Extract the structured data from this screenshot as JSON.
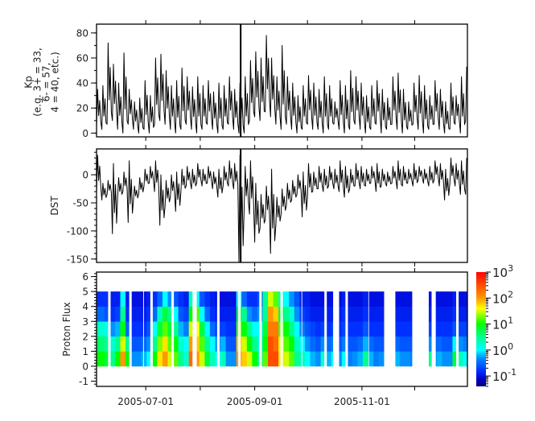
{
  "time_axis": {
    "range": [
      "2005-06-03",
      "2005-12-31"
    ],
    "major_ticks": [
      "2005-07-01",
      "2005-09-01",
      "2005-11-01"
    ],
    "minor_ticks": [
      "2005-08-01",
      "2005-10-01",
      "2005-12-01"
    ]
  },
  "marker_date": "2005-08-24",
  "chart_data": [
    {
      "type": "line",
      "ylabel_lines": [
        "Kp",
        "(e.g. 3+ = 33,",
        "6- = 57,",
        "4 = 40, etc.)"
      ],
      "ylim": [
        -3,
        87
      ],
      "yticks": [
        0,
        20,
        40,
        60,
        80
      ],
      "minor_step": 10,
      "x_start": "2005-06-03",
      "x_step_days": 3,
      "series": [
        {
          "stat": "min",
          "values": [
            5,
            3,
            7,
            10,
            3,
            0,
            7,
            3,
            0,
            3,
            0,
            7,
            10,
            7,
            3,
            0,
            3,
            7,
            3,
            0,
            3,
            7,
            3,
            0,
            3,
            7,
            3,
            0,
            0,
            10,
            13,
            10,
            17,
            13,
            7,
            3,
            7,
            3,
            0,
            3,
            7,
            3,
            3,
            0,
            3,
            7,
            3,
            0,
            3,
            7,
            3,
            0,
            3,
            7,
            0,
            3,
            7,
            3,
            0,
            3,
            7,
            3,
            0,
            3,
            7,
            3,
            0,
            3,
            7,
            0,
            10
          ]
        },
        {
          "stat": "max",
          "values": [
            35,
            38,
            72,
            55,
            40,
            64,
            35,
            25,
            28,
            42,
            30,
            60,
            63,
            50,
            38,
            42,
            52,
            45,
            37,
            45,
            38,
            42,
            33,
            40,
            38,
            45,
            35,
            40,
            45,
            58,
            65,
            60,
            78,
            60,
            45,
            70,
            45,
            40,
            30,
            38,
            46,
            40,
            35,
            45,
            38,
            25,
            42,
            38,
            50,
            45,
            40,
            30,
            38,
            42,
            35,
            28,
            45,
            48,
            35,
            25,
            40,
            46,
            38,
            30,
            42,
            35,
            25,
            40,
            30,
            45,
            53
          ]
        }
      ]
    },
    {
      "type": "line",
      "ylabel": "DST",
      "ylim": [
        -156,
        46
      ],
      "yticks": [
        0,
        -50,
        -100,
        -150
      ],
      "minor_step": 10,
      "x_start": "2005-06-03",
      "x_step_days": 3,
      "series": [
        {
          "stat": "min",
          "values": [
            -30,
            -45,
            -35,
            -105,
            -40,
            -30,
            -85,
            -45,
            -35,
            -20,
            -15,
            -30,
            -90,
            -55,
            -40,
            -65,
            -30,
            -20,
            -25,
            -15,
            -20,
            -15,
            -25,
            -40,
            -20,
            -20,
            -25,
            -155,
            -60,
            -70,
            -120,
            -95,
            -80,
            -140,
            -90,
            -70,
            -55,
            -45,
            -35,
            -75,
            -40,
            -30,
            -25,
            -30,
            -20,
            -25,
            -30,
            -40,
            -25,
            -20,
            -25,
            -20,
            -15,
            -30,
            -20,
            -20,
            -15,
            -25,
            -20,
            -15,
            -20,
            -10,
            -15,
            -20,
            -10,
            -20,
            -45,
            -15,
            -20,
            -35,
            -35
          ]
        },
        {
          "stat": "max",
          "values": [
            35,
            -15,
            -10,
            20,
            -5,
            5,
            25,
            -20,
            -5,
            10,
            15,
            25,
            0,
            -10,
            0,
            5,
            10,
            15,
            10,
            20,
            10,
            15,
            5,
            10,
            15,
            25,
            20,
            35,
            15,
            25,
            -15,
            -35,
            -20,
            10,
            -40,
            -25,
            -15,
            -10,
            0,
            5,
            20,
            5,
            15,
            10,
            15,
            10,
            25,
            15,
            10,
            20,
            15,
            10,
            15,
            20,
            10,
            5,
            15,
            25,
            15,
            10,
            20,
            15,
            10,
            15,
            25,
            20,
            10,
            30,
            20,
            25,
            30
          ]
        }
      ]
    },
    {
      "type": "heatmap",
      "ylabel": "Proton Flux",
      "ylim": [
        -1.35,
        6.3
      ],
      "yticks": [
        -1,
        0,
        1,
        2,
        3,
        4,
        5,
        6
      ],
      "minor_step": 0.2,
      "x_start": "2005-06-03",
      "x_step_days": 3,
      "y_bins": [
        [
          0,
          1
        ],
        [
          1,
          2
        ],
        [
          2,
          3
        ],
        [
          3,
          4
        ],
        [
          4,
          5
        ]
      ],
      "z_scale": "log",
      "z_log10_range": [
        -1.4,
        3
      ],
      "colorbar_exponents": [
        3,
        2,
        1,
        0,
        -1
      ],
      "colorbar_base": "10",
      "colormap": [
        [
          -1.4,
          "#000070"
        ],
        [
          -1.1,
          "#0000d0"
        ],
        [
          -0.8,
          "#0030ff"
        ],
        [
          -0.3,
          "#0090ff"
        ],
        [
          0,
          "#00ffff"
        ],
        [
          0.5,
          "#00ff90"
        ],
        [
          1,
          "#00ff00"
        ],
        [
          1.6,
          "#ffff00"
        ],
        [
          2,
          "#ff9900"
        ],
        [
          3,
          "#ff0000"
        ]
      ],
      "coverage": [
        [
          "2005-06-03",
          "2005-06-09"
        ],
        [
          "2005-06-11",
          "2005-06-21"
        ],
        [
          "2005-06-23",
          "2005-06-29"
        ],
        [
          "2005-06-30",
          "2005-07-03"
        ],
        [
          "2005-07-05",
          "2005-07-15"
        ],
        [
          "2005-07-17",
          "2005-07-27"
        ],
        [
          "2005-07-30",
          "2005-08-10"
        ],
        [
          "2005-08-12",
          "2005-08-22"
        ],
        [
          "2005-08-24",
          "2005-09-03"
        ],
        [
          "2005-09-05",
          "2005-09-15"
        ],
        [
          "2005-09-17",
          "2005-09-27"
        ],
        [
          "2005-09-28",
          "2005-10-10"
        ],
        [
          "2005-10-12",
          "2005-10-15"
        ],
        [
          "2005-10-19",
          "2005-10-22"
        ],
        [
          "2005-10-24",
          "2005-11-04"
        ],
        [
          "2005-11-05",
          "2005-11-13"
        ],
        [
          "2005-11-20",
          "2005-11-29"
        ],
        [
          "2005-12-09",
          "2005-12-10"
        ],
        [
          "2005-12-13",
          "2005-12-24"
        ],
        [
          "2005-12-26",
          "2005-12-31"
        ]
      ],
      "log10_flux": [
        [
          1,
          0.7,
          0.3,
          -0.5,
          -0.8
        ],
        [
          1,
          0.6,
          0.2,
          -0.5,
          -0.8
        ],
        [
          0.8,
          0.5,
          0.1,
          -0.6,
          -0.8
        ],
        [
          0.5,
          0.2,
          -0.3,
          -0.8,
          -0.9
        ],
        [
          1,
          0.5,
          -0.2,
          -0.7,
          -0.9
        ],
        [
          2,
          1.5,
          1,
          0.5,
          0
        ],
        [
          1,
          0.5,
          -0.5,
          -0.8,
          -0.9
        ],
        [
          -0.3,
          -0.6,
          -0.8,
          -0.9,
          -1
        ],
        [
          -0.3,
          -0.6,
          -0.8,
          -0.9,
          -1
        ],
        [
          -0.2,
          -0.5,
          -0.8,
          -0.9,
          -1
        ],
        [
          0,
          -0.3,
          -0.6,
          -0.8,
          -0.9
        ],
        [
          1,
          0.5,
          0,
          -0.5,
          -0.8
        ],
        [
          1.7,
          1.3,
          0.8,
          0.3,
          -0.5
        ],
        [
          2,
          1.7,
          1.2,
          0.8,
          0
        ],
        [
          1.5,
          1.2,
          0.8,
          0.5,
          -0.3
        ],
        [
          1.2,
          1,
          0.5,
          0,
          -0.6
        ],
        [
          0.5,
          0.2,
          -0.2,
          -0.6,
          -0.8
        ],
        [
          0.2,
          0,
          -0.4,
          -0.7,
          -0.9
        ],
        [
          2.3,
          2,
          1.5,
          1,
          0.3
        ],
        [
          2,
          1.8,
          1.6,
          1.2,
          0
        ],
        [
          1.5,
          1.2,
          0.8,
          0,
          -0.6
        ],
        [
          0.8,
          0.5,
          0,
          -0.5,
          -0.8
        ],
        [
          0.3,
          0,
          -0.5,
          -0.8,
          -0.9
        ],
        [
          0,
          -0.3,
          -0.7,
          -0.9,
          -1
        ],
        [
          0.3,
          -0.2,
          -0.7,
          -0.9,
          -1
        ],
        [
          -0.3,
          -0.6,
          -0.8,
          -0.9,
          -1
        ],
        [
          -0.3,
          -0.6,
          -0.8,
          -0.9,
          -1
        ],
        [
          2,
          1.8,
          1.2,
          0.8,
          0
        ],
        [
          1.8,
          1.5,
          1,
          0.5,
          -0.5
        ],
        [
          1.5,
          1,
          0.5,
          -0.3,
          -0.8
        ],
        [
          1,
          0.5,
          0,
          -0.5,
          -0.8
        ],
        [
          0.5,
          0.2,
          0,
          -0.3,
          -0.6
        ],
        [
          1.2,
          1,
          0.8,
          0.5,
          0.5
        ],
        [
          2.5,
          2.5,
          2.2,
          2,
          1.5
        ],
        [
          2.5,
          2.3,
          2.2,
          1.8,
          1.2
        ],
        [
          1.7,
          1.5,
          1.2,
          0.8,
          0.3
        ],
        [
          1.5,
          1.2,
          1,
          0.5,
          0
        ],
        [
          1.2,
          1,
          0.5,
          0.2,
          -0.3
        ],
        [
          0.5,
          0.3,
          0,
          -0.3,
          -0.6
        ],
        [
          0.3,
          0,
          -0.4,
          -0.7,
          -0.9
        ],
        [
          0,
          -0.3,
          -0.6,
          -0.8,
          -0.9
        ],
        [
          -0.2,
          -0.5,
          -0.7,
          -0.9,
          -1
        ],
        [
          -0.3,
          -0.6,
          -0.8,
          -0.9,
          -1
        ],
        [
          0.2,
          -0.3,
          -0.7,
          -0.9,
          -1
        ],
        [
          -0.2,
          -0.5,
          -0.8,
          -0.9,
          -1
        ],
        [
          0,
          -0.4,
          -0.7,
          -0.9,
          -1
        ],
        [
          -0.3,
          -0.6,
          -0.8,
          -0.9,
          -1
        ],
        [
          0,
          -0.4,
          -0.7,
          -0.8,
          -0.9
        ],
        [
          -0.4,
          -0.6,
          -0.8,
          -0.9,
          -1
        ],
        [
          -0.3,
          -0.6,
          -0.8,
          -0.9,
          -1
        ],
        [
          -0.2,
          -0.5,
          -0.8,
          -0.9,
          -1
        ],
        [
          0.5,
          -0.2,
          -0.6,
          -0.8,
          -0.9
        ],
        [
          -0.2,
          -0.5,
          -0.8,
          -0.9,
          -1
        ],
        [
          -0.4,
          -0.6,
          -0.8,
          -0.9,
          -1
        ],
        [
          -0.3,
          -0.6,
          -0.8,
          -0.9,
          -1
        ],
        [
          -0.3,
          -0.6,
          -0.8,
          -0.9,
          -1
        ],
        [
          -0.4,
          -0.6,
          -0.8,
          -0.9,
          -1
        ],
        [
          -0.2,
          -0.5,
          -0.8,
          -0.9,
          -1
        ],
        [
          -0.3,
          -0.6,
          -0.8,
          -0.9,
          -1
        ],
        [
          -0.3,
          -0.6,
          -0.8,
          -0.9,
          -1
        ],
        [
          -0.4,
          -0.6,
          -0.8,
          -0.9,
          -1
        ],
        [
          -0.4,
          -0.6,
          -0.8,
          -0.9,
          -1
        ],
        [
          -0.4,
          -0.6,
          -0.8,
          -0.9,
          -1
        ],
        [
          0.5,
          -0.3,
          -0.7,
          -0.9,
          -1
        ],
        [
          -0.3,
          -0.6,
          -0.8,
          -0.9,
          -1
        ],
        [
          -0.2,
          -0.5,
          -0.8,
          -0.9,
          -1
        ],
        [
          -0.3,
          -0.6,
          -0.8,
          -0.9,
          -1
        ],
        [
          -0.3,
          -0.6,
          -0.8,
          -0.9,
          -1
        ],
        [
          0.8,
          0,
          -0.6,
          -0.8,
          -0.9
        ],
        [
          0.3,
          -0.3,
          -0.7,
          -0.9,
          -1
        ],
        [
          0,
          -0.4,
          -0.7,
          -0.9,
          -1
        ]
      ]
    }
  ]
}
